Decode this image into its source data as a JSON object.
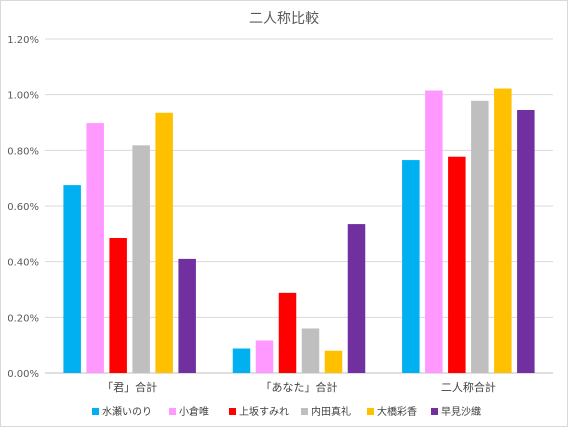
{
  "chart_data": {
    "type": "bar",
    "title": "二人称比較",
    "categories": [
      "「君」合計",
      "「あなた」合計",
      "二人称合計"
    ],
    "ylim": [
      0,
      1.2
    ],
    "yticks": [
      0,
      0.2,
      0.4,
      0.6,
      0.8,
      1.0,
      1.2
    ],
    "ytick_labels": [
      "0.00%",
      "0.20%",
      "0.40%",
      "0.60%",
      "0.80%",
      "1.00%",
      "1.20%"
    ],
    "grid": true,
    "legend_position": "bottom",
    "series": [
      {
        "name": "水瀬いのり",
        "color": "#00b0f0",
        "values": [
          0.675,
          0.088,
          0.765
        ]
      },
      {
        "name": "小倉唯",
        "color": "#ff99ff",
        "values": [
          0.898,
          0.117,
          1.015
        ]
      },
      {
        "name": "上坂すみれ",
        "color": "#ff0000",
        "values": [
          0.485,
          0.288,
          0.777
        ]
      },
      {
        "name": "内田真礼",
        "color": "#bfbfbf",
        "values": [
          0.818,
          0.16,
          0.978
        ]
      },
      {
        "name": "大橋彩香",
        "color": "#ffc000",
        "values": [
          0.935,
          0.08,
          1.022
        ]
      },
      {
        "name": "早見沙織",
        "color": "#7030a0",
        "values": [
          0.41,
          0.535,
          0.945
        ]
      }
    ]
  }
}
